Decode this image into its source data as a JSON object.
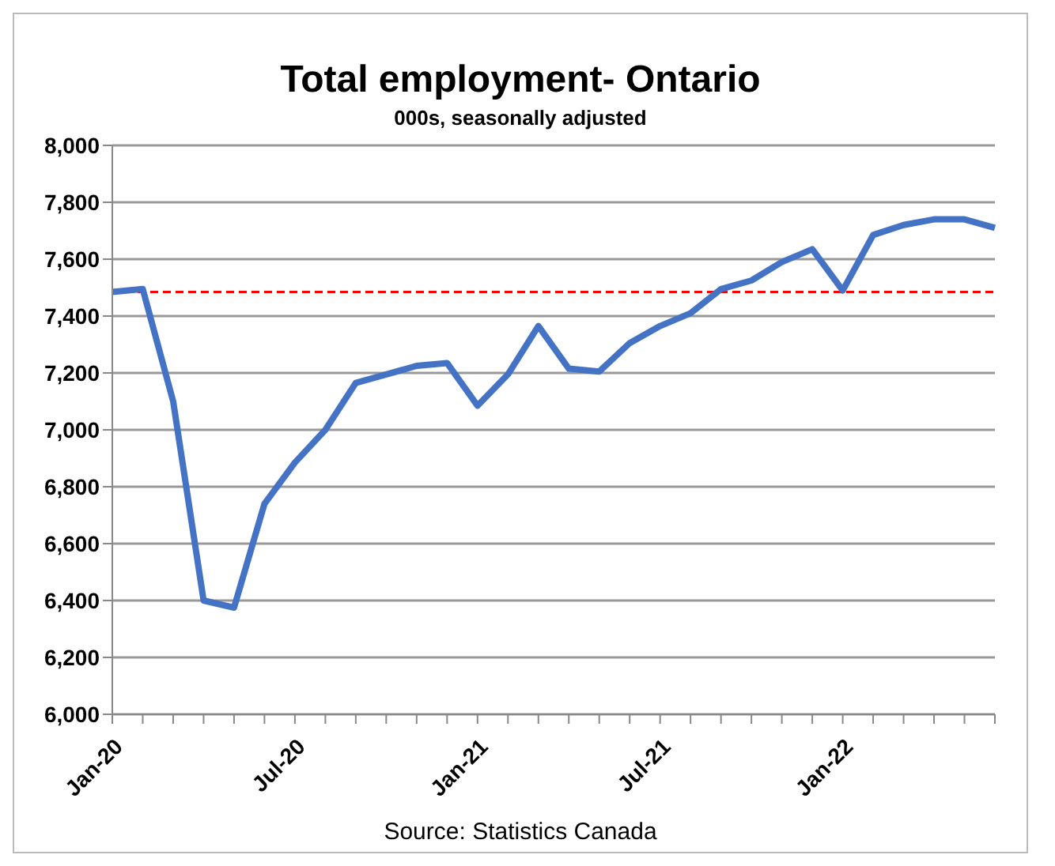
{
  "chart_data": {
    "type": "line",
    "title": "Total employment- Ontario",
    "subtitle": "000s, seasonally adjusted",
    "categories": [
      "Jan-20",
      null,
      null,
      null,
      null,
      null,
      "Jul-20",
      null,
      null,
      null,
      null,
      null,
      "Jan-21",
      null,
      null,
      null,
      null,
      null,
      "Jul-21",
      null,
      null,
      null,
      null,
      null,
      "Jan-22",
      null,
      null,
      null,
      null,
      null
    ],
    "series": [
      {
        "color": "#4472c4",
        "values": [
          7485,
          7495,
          7100,
          6400,
          6375,
          6740,
          6885,
          7000,
          7165,
          7195,
          7225,
          7235,
          7085,
          7195,
          7365,
          7215,
          7205,
          7305,
          7365,
          7410,
          7495,
          7525,
          7590,
          7635,
          7490,
          7685,
          7720,
          7740,
          7740,
          7710
        ]
      }
    ],
    "ylim": [
      6000,
      8000
    ],
    "yticks": [
      {
        "value": 6000,
        "label": "6,000"
      },
      {
        "value": 6200,
        "label": "6,200"
      },
      {
        "value": 6400,
        "label": "6,400"
      },
      {
        "value": 6600,
        "label": "6,600"
      },
      {
        "value": 6800,
        "label": "6,800"
      },
      {
        "value": 7000,
        "label": "7,000"
      },
      {
        "value": 7200,
        "label": "7,200"
      },
      {
        "value": 7400,
        "label": "7,400"
      },
      {
        "value": 7600,
        "label": "7,600"
      },
      {
        "value": 7800,
        "label": "7,800"
      },
      {
        "value": 8000,
        "label": "8,000"
      }
    ],
    "grid": "y",
    "legend": false,
    "marker": "none",
    "line_style": "solid",
    "ref_lines": [
      {
        "axis": "y",
        "value": 7485,
        "color": "#ff0000",
        "line_style": "dashed"
      }
    ],
    "annotations": [
      "Source: Statistics Canada"
    ]
  }
}
